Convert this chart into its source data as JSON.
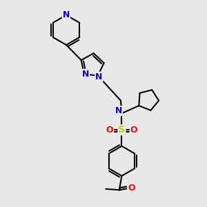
{
  "bg_color": "#e8e8e8",
  "bond_color": "#000000",
  "bond_width": 1.5,
  "atom_colors": {
    "N": "#0000cc",
    "O": "#ff0000",
    "S": "#cccc00",
    "C": "#000000"
  }
}
